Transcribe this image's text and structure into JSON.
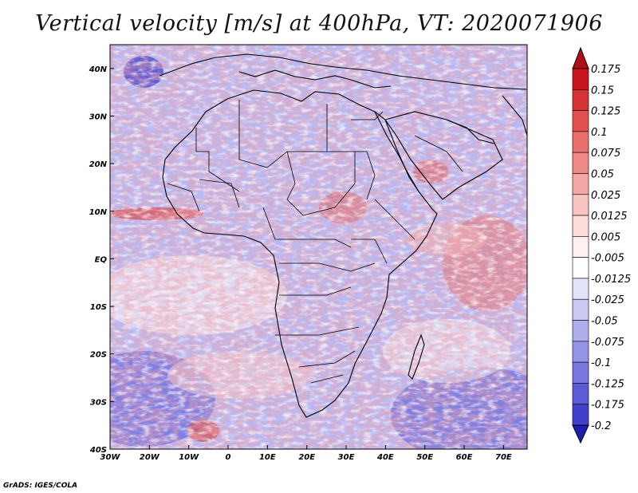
{
  "title": "Vertical velocity [m/s] at 400hPa, VT: 2020071906",
  "credit": "GrADS: IGES/COLA",
  "map": {
    "lon_range": [
      -30,
      76
    ],
    "lat_range": [
      -40,
      45
    ],
    "lat_ticks": [
      {
        "value": 40,
        "label": "40N"
      },
      {
        "value": 30,
        "label": "30N"
      },
      {
        "value": 20,
        "label": "20N"
      },
      {
        "value": 10,
        "label": "10N"
      },
      {
        "value": 0,
        "label": "EQ"
      },
      {
        "value": -10,
        "label": "10S"
      },
      {
        "value": -20,
        "label": "20S"
      },
      {
        "value": -30,
        "label": "30S"
      },
      {
        "value": -40,
        "label": "40S"
      }
    ],
    "lon_ticks": [
      {
        "value": -30,
        "label": "30W"
      },
      {
        "value": -20,
        "label": "20W"
      },
      {
        "value": -10,
        "label": "10W"
      },
      {
        "value": 0,
        "label": "0"
      },
      {
        "value": 10,
        "label": "10E"
      },
      {
        "value": 20,
        "label": "20E"
      },
      {
        "value": 30,
        "label": "30E"
      },
      {
        "value": 40,
        "label": "40E"
      },
      {
        "value": 50,
        "label": "50E"
      },
      {
        "value": 60,
        "label": "60E"
      },
      {
        "value": 70,
        "label": "70E"
      }
    ],
    "coastline_color": "#000000"
  },
  "colorbar": {
    "levels": [
      {
        "label": "0.175",
        "color": "#c8141c"
      },
      {
        "label": "0.15",
        "color": "#d73234"
      },
      {
        "label": "0.125",
        "color": "#e2504f"
      },
      {
        "label": "0.1",
        "color": "#ea6e6b"
      },
      {
        "label": "0.075",
        "color": "#f08a86"
      },
      {
        "label": "0.05",
        "color": "#f5a7a3"
      },
      {
        "label": "0.025",
        "color": "#f9c3c0"
      },
      {
        "label": "0.0125",
        "color": "#fcdcd9"
      },
      {
        "label": "0.005",
        "color": "#fdf0ef"
      },
      {
        "label": "-0.005",
        "color": "#ffffff"
      },
      {
        "label": "-0.0125",
        "color": "#e3e3fa"
      },
      {
        "label": "-0.025",
        "color": "#c9c9f4"
      },
      {
        "label": "-0.05",
        "color": "#afafee"
      },
      {
        "label": "-0.075",
        "color": "#9393e7"
      },
      {
        "label": "-0.1",
        "color": "#7878df"
      },
      {
        "label": "-0.125",
        "color": "#5c5cd6"
      },
      {
        "label": "-0.175",
        "color": "#4040cc"
      },
      {
        "label": "-0.2",
        "color": "#2a2ac0"
      }
    ],
    "top_color": "#b01018",
    "bottom_color": "#1e1eb0"
  }
}
